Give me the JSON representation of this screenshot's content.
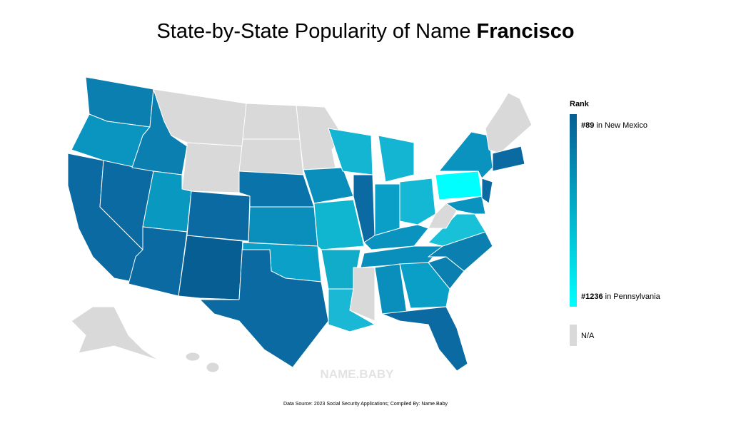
{
  "header": {
    "title_prefix": "State-by-State Popularity of Name",
    "title_name": "Francisco"
  },
  "legend": {
    "title": "Rank",
    "top": {
      "rank": "#89",
      "place": "in New Mexico",
      "color": "#065e93"
    },
    "bottom": {
      "rank": "#1236",
      "place": "in Pennsylvania",
      "color": "#00ffff"
    },
    "na": {
      "label": "N/A",
      "color": "#d9d9d9"
    }
  },
  "watermark": "NAME.BABY",
  "footer": {
    "source": "Data Source: 2023 Social Security Applications; Compiled By: Name.Baby"
  }
}
